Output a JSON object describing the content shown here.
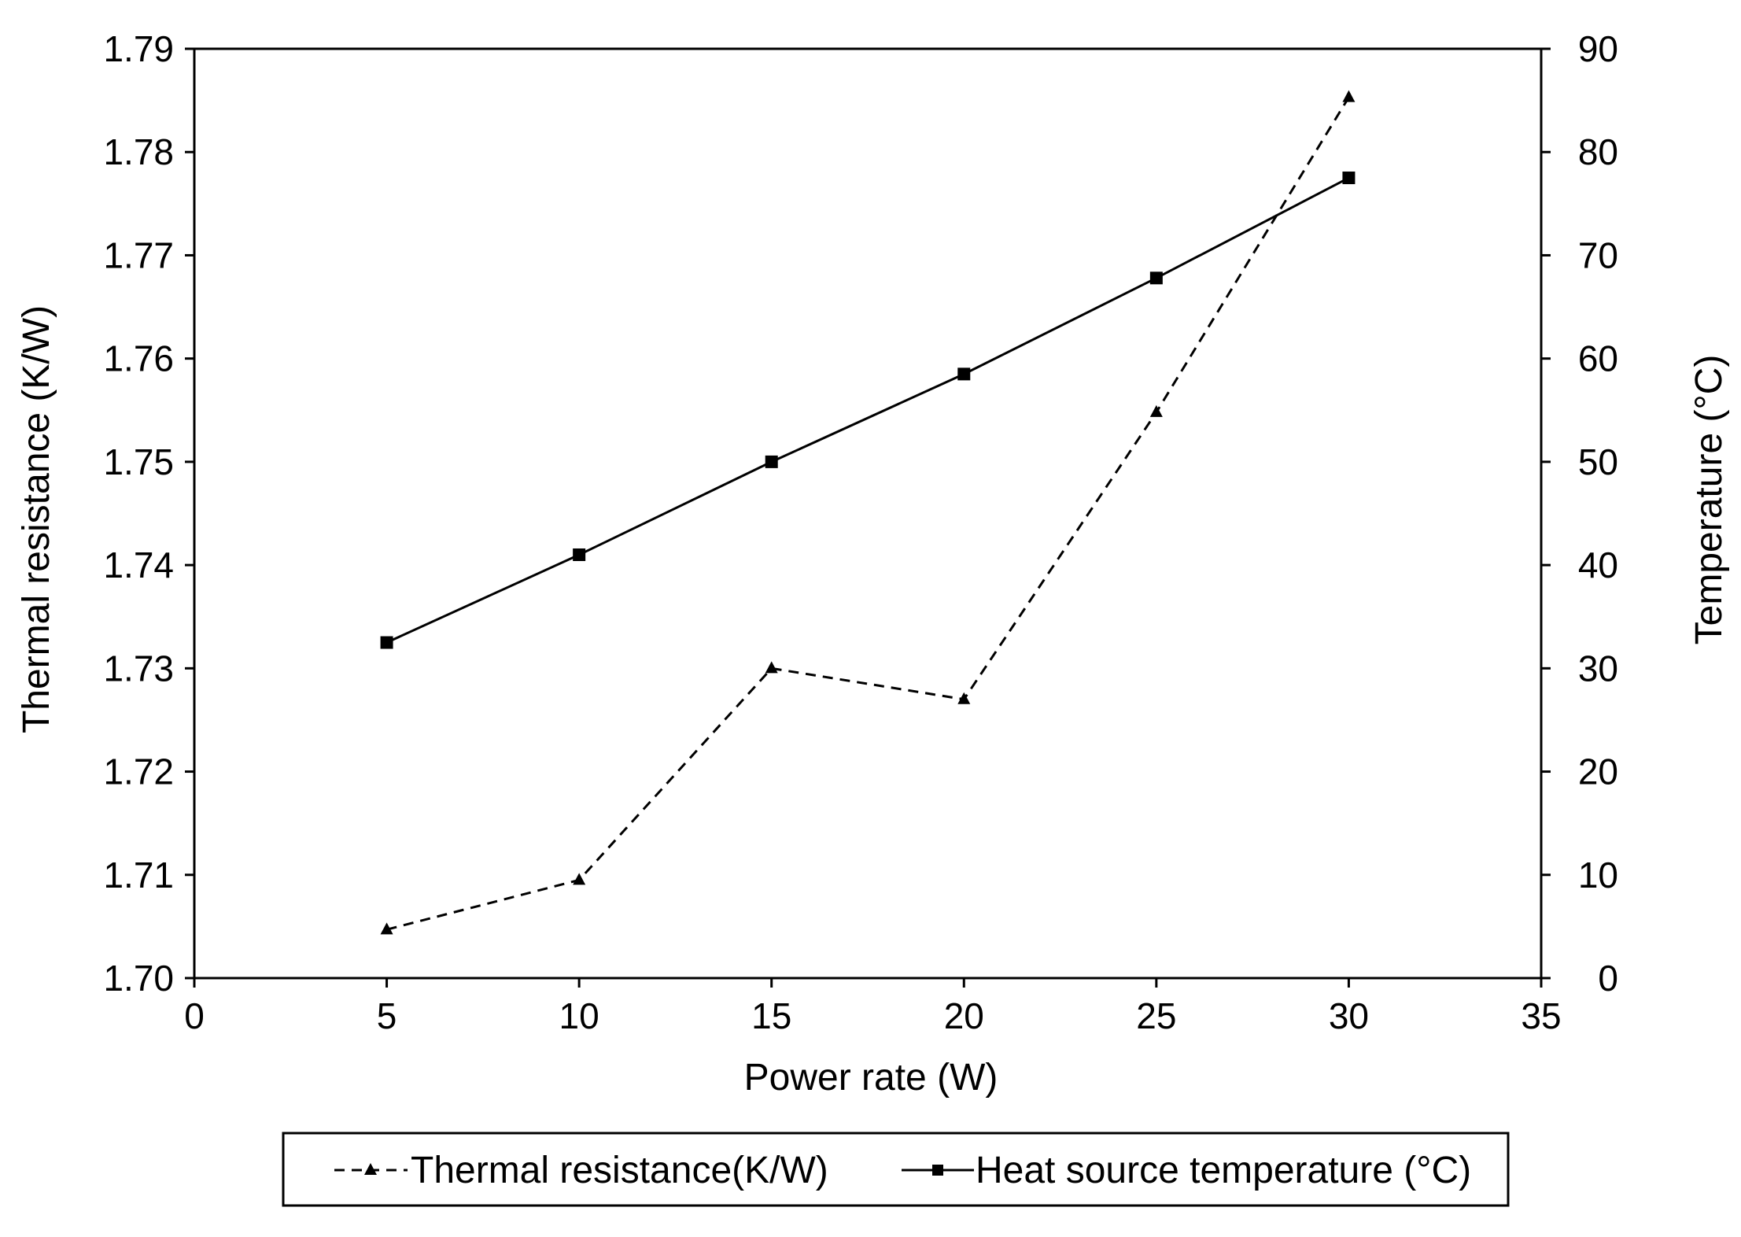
{
  "chart_data": {
    "type": "line",
    "title": "",
    "xlabel": "Power rate (W)",
    "ylabel": "Thermal resistance (K/W)",
    "y2label": "Temperature (°C)",
    "xlim": [
      0,
      35
    ],
    "ylim": [
      1.7,
      1.79
    ],
    "y2lim": [
      0,
      90
    ],
    "xticks": [
      "0",
      "5",
      "10",
      "15",
      "20",
      "25",
      "30",
      "35"
    ],
    "yticks": [
      "1.70",
      "1.71",
      "1.72",
      "1.73",
      "1.74",
      "1.75",
      "1.76",
      "1.77",
      "1.78",
      "1.79"
    ],
    "y2ticks": [
      "0",
      "10",
      "20",
      "30",
      "40",
      "50",
      "60",
      "70",
      "80",
      "90"
    ],
    "grid": false,
    "legend_position": "bottom",
    "series": [
      {
        "name": "Thermal resistance(K/W)",
        "axis": "left",
        "style": "dashed",
        "marker": "triangle",
        "x": [
          5,
          10,
          15,
          20,
          25,
          30
        ],
        "values": [
          1.7047,
          1.7095,
          1.73,
          1.727,
          1.7548,
          1.7853
        ]
      },
      {
        "name": "Heat source temperature (°C)",
        "axis": "right",
        "style": "solid",
        "marker": "square",
        "x": [
          5,
          10,
          15,
          20,
          25,
          30
        ],
        "values": [
          32.5,
          41.0,
          50.0,
          58.5,
          67.8,
          77.5
        ]
      }
    ],
    "colors": {
      "line": "#000000",
      "background": "#ffffff"
    }
  }
}
